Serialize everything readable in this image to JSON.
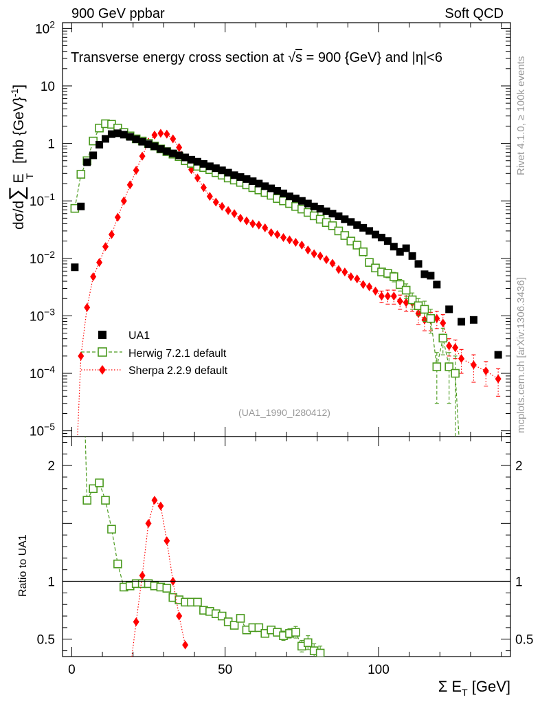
{
  "header": {
    "left": "900 GeV ppbar",
    "right": "Soft QCD"
  },
  "side": {
    "rivet": "Rivet 4.1.0, ≥ 100k events",
    "mcplots": "mcplots.cern.ch [arXiv:1306.3436]"
  },
  "chart_data": {
    "type": "scatter",
    "title_parts": {
      "pre": "Transverse energy cross section at ",
      "sqrt": "√",
      "s": "s",
      "mid": " = 900 {GeV} and |",
      "eta": "η",
      "post": "|<6"
    },
    "analysis_tag": "(UA1_1990_I280412)",
    "ylabel_parts": {
      "a": "dσ/d",
      "sum": "∑",
      "e": "E",
      "t": "T",
      "unit": "[mb {GeV}",
      "exp": "-1",
      "close": "]"
    },
    "xlabel_parts": {
      "sigma": "Σ E",
      "t": "T",
      "unit": " [GeV]"
    },
    "ratio_ylabel": "Ratio to UA1",
    "xlim": [
      -3,
      143
    ],
    "ylim_log": [
      -5.1,
      2.1
    ],
    "ratio_ylim": [
      0.35,
      2.25
    ],
    "main_y_ticks": [
      {
        "v": 2,
        "label": "10",
        "exp": "2"
      },
      {
        "v": 1,
        "label": "10",
        "exp": ""
      },
      {
        "v": 0,
        "label": "1",
        "exp": ""
      },
      {
        "v": -1,
        "label": "10",
        "exp": "−1"
      },
      {
        "v": -2,
        "label": "10",
        "exp": "−2"
      },
      {
        "v": -3,
        "label": "10",
        "exp": "−3"
      },
      {
        "v": -4,
        "label": "10",
        "exp": "−4"
      },
      {
        "v": -5,
        "label": "10",
        "exp": "−5"
      }
    ],
    "x_ticks": [
      0,
      50,
      100
    ],
    "ratio_ticks": [
      {
        "v": 2,
        "label": "2"
      },
      {
        "v": 1,
        "label": "1"
      },
      {
        "v": 0.5,
        "label": "0.5"
      }
    ],
    "series": [
      {
        "name": "UA1",
        "legend": "UA1",
        "color": "#000000",
        "marker": "square-filled",
        "line": "none",
        "x": [
          1,
          3,
          5,
          7,
          9,
          11,
          13,
          15,
          17,
          19,
          21,
          23,
          25,
          27,
          29,
          31,
          33,
          35,
          37,
          39,
          41,
          43,
          45,
          47,
          49,
          51,
          53,
          55,
          57,
          59,
          61,
          63,
          65,
          67,
          69,
          71,
          73,
          75,
          77,
          79,
          81,
          83,
          85,
          87,
          89,
          91,
          93,
          95,
          97,
          99,
          101,
          103,
          105,
          107,
          109,
          111,
          113,
          115,
          117,
          119,
          123,
          127,
          131,
          139
        ],
        "y": [
          0.007,
          0.08,
          0.47,
          0.62,
          0.95,
          1.2,
          1.45,
          1.5,
          1.42,
          1.3,
          1.18,
          1.07,
          0.97,
          0.89,
          0.8,
          0.73,
          0.67,
          0.62,
          0.57,
          0.52,
          0.48,
          0.44,
          0.4,
          0.37,
          0.34,
          0.31,
          0.28,
          0.26,
          0.24,
          0.22,
          0.2,
          0.18,
          0.165,
          0.15,
          0.135,
          0.12,
          0.11,
          0.1,
          0.09,
          0.08,
          0.073,
          0.066,
          0.06,
          0.054,
          0.048,
          0.043,
          0.038,
          0.034,
          0.03,
          0.026,
          0.023,
          0.02,
          0.016,
          0.013,
          0.015,
          0.011,
          0.008,
          0.0053,
          0.005,
          0.0035,
          0.0013,
          0.00079,
          0.00085,
          0.00021
        ]
      },
      {
        "name": "Herwig",
        "legend": "Herwig 7.2.1 default",
        "color": "#4a9a1e",
        "marker": "square-open",
        "line": "dashed",
        "x": [
          1,
          3,
          5,
          7,
          9,
          11,
          13,
          15,
          17,
          19,
          21,
          23,
          25,
          27,
          29,
          31,
          33,
          35,
          37,
          39,
          41,
          43,
          45,
          47,
          49,
          51,
          53,
          55,
          57,
          59,
          61,
          63,
          65,
          67,
          69,
          71,
          73,
          75,
          77,
          79,
          81,
          83,
          85,
          87,
          89,
          91,
          93,
          95,
          97,
          99,
          101,
          103,
          105,
          107,
          109,
          111,
          113,
          115,
          117,
          119,
          121,
          123,
          125,
          127
        ],
        "y": [
          0.074,
          0.29,
          0.5,
          1.1,
          1.85,
          2.2,
          2.15,
          1.85,
          1.55,
          1.35,
          1.2,
          1.1,
          1.0,
          0.9,
          0.8,
          0.72,
          0.65,
          0.59,
          0.5,
          0.45,
          0.4,
          0.38,
          0.35,
          0.31,
          0.28,
          0.25,
          0.23,
          0.21,
          0.19,
          0.17,
          0.155,
          0.14,
          0.125,
          0.11,
          0.1,
          0.09,
          0.08,
          0.072,
          0.063,
          0.055,
          0.048,
          0.042,
          0.037,
          0.03,
          0.025,
          0.02,
          0.017,
          0.013,
          0.0085,
          0.0068,
          0.0058,
          0.0055,
          0.0048,
          0.0035,
          0.0028,
          0.0019,
          0.0015,
          0.0013,
          0.0009,
          0.00013,
          0.00041,
          0.00013,
          0.0001,
          1.6e-06
        ],
        "yerr": [
          0,
          0,
          0,
          0,
          0,
          0,
          0,
          0,
          0,
          0,
          0,
          0,
          0,
          0,
          0,
          0,
          0,
          0,
          0,
          0,
          0,
          0,
          0,
          0,
          0,
          0,
          0,
          0,
          0,
          0,
          0,
          0,
          0,
          0,
          0,
          0,
          0,
          0,
          0,
          0,
          0,
          0,
          0,
          0,
          0,
          0,
          0,
          0,
          0,
          0,
          0.0008,
          0.0009,
          0.0009,
          0.0008,
          0.0008,
          0.0006,
          0.0005,
          0.0005,
          0.0004,
          0.0001,
          0.0002,
          0.0001,
          0.0001,
          0
        ]
      },
      {
        "name": "Sherpa",
        "legend": "Sherpa 2.2.9 default",
        "color": "#ff0000",
        "marker": "diamond-filled",
        "line": "dotted",
        "x": [
          1,
          3,
          5,
          7,
          9,
          11,
          13,
          15,
          17,
          19,
          21,
          23,
          25,
          27,
          29,
          31,
          33,
          35,
          37,
          39,
          41,
          43,
          45,
          47,
          49,
          51,
          53,
          55,
          57,
          59,
          61,
          63,
          65,
          67,
          69,
          71,
          73,
          75,
          77,
          79,
          81,
          83,
          85,
          87,
          89,
          91,
          93,
          95,
          97,
          99,
          101,
          103,
          105,
          107,
          109,
          111,
          113,
          115,
          117,
          119,
          121,
          123,
          125,
          127,
          131,
          135,
          139
        ],
        "y": [
          6e-07,
          0.0002,
          0.0014,
          0.0048,
          0.0085,
          0.016,
          0.026,
          0.052,
          0.1,
          0.19,
          0.34,
          0.6,
          1.05,
          1.4,
          1.5,
          1.45,
          1.2,
          0.85,
          0.55,
          0.35,
          0.25,
          0.17,
          0.12,
          0.095,
          0.08,
          0.068,
          0.06,
          0.05,
          0.045,
          0.04,
          0.038,
          0.034,
          0.028,
          0.026,
          0.023,
          0.021,
          0.019,
          0.017,
          0.014,
          0.012,
          0.011,
          0.0095,
          0.0082,
          0.0064,
          0.0058,
          0.0048,
          0.0044,
          0.0035,
          0.0032,
          0.0027,
          0.0022,
          0.0022,
          0.0022,
          0.0018,
          0.0017,
          0.0017,
          0.0011,
          0.00085,
          0.00085,
          0.0009,
          0.00075,
          0.0003,
          0.00028,
          0.00018,
          0.00014,
          0.00011,
          8e-05
        ],
        "yerr": [
          0,
          0,
          0,
          0,
          0,
          0,
          0,
          0,
          0,
          0,
          0,
          0,
          0,
          0,
          0,
          0,
          0,
          0,
          0,
          0,
          0,
          0,
          0,
          0,
          0,
          0,
          0,
          0,
          0,
          0,
          0,
          0,
          0,
          0,
          0,
          0,
          0,
          0,
          0,
          0,
          0,
          0,
          0,
          0,
          0,
          0,
          0,
          0,
          0,
          0,
          0.0005,
          0.0006,
          0.0006,
          0.0005,
          0.0005,
          0.0005,
          0.0004,
          0.0003,
          0.0003,
          0.0003,
          0.0003,
          0.0001,
          0.0001,
          8e-05,
          7e-05,
          5e-05,
          4e-05
        ]
      }
    ],
    "ratio_series": [
      {
        "name": "Herwig",
        "color": "#4a9a1e",
        "marker": "square-open",
        "line": "dashed",
        "x": [
          3,
          5,
          7,
          9,
          11,
          13,
          15,
          17,
          19,
          21,
          23,
          25,
          27,
          29,
          31,
          33,
          35,
          37,
          39,
          41,
          43,
          45,
          47,
          49,
          51,
          53,
          55,
          57,
          59,
          61,
          63,
          65,
          67,
          69,
          71,
          73,
          75,
          77,
          79,
          81
        ],
        "y": [
          3.6,
          1.7,
          1.8,
          1.85,
          1.7,
          1.45,
          1.15,
          0.95,
          0.96,
          0.98,
          0.98,
          0.98,
          0.96,
          0.95,
          0.94,
          0.86,
          0.84,
          0.82,
          0.82,
          0.82,
          0.75,
          0.74,
          0.72,
          0.7,
          0.65,
          0.62,
          0.68,
          0.58,
          0.6,
          0.6,
          0.55,
          0.58,
          0.56,
          0.53,
          0.55,
          0.56,
          0.44,
          0.47,
          0.4,
          0.38
        ],
        "yerr": [
          0,
          0,
          0,
          0,
          0,
          0,
          0,
          0,
          0,
          0,
          0,
          0,
          0,
          0,
          0,
          0,
          0,
          0,
          0,
          0,
          0,
          0,
          0,
          0,
          0,
          0,
          0.02,
          0.02,
          0.02,
          0.02,
          0.03,
          0.03,
          0.03,
          0.04,
          0.04,
          0.05,
          0.05,
          0.06,
          0.06,
          0.06
        ]
      },
      {
        "name": "Sherpa",
        "color": "#ff0000",
        "marker": "diamond-filled",
        "line": "dotted",
        "x": [
          17,
          19,
          21,
          23,
          25,
          27,
          29,
          31,
          33,
          35,
          37
        ],
        "y": [
          0.1,
          0.22,
          0.65,
          1.05,
          1.5,
          1.7,
          1.65,
          1.35,
          1.0,
          0.7,
          0.45
        ]
      }
    ]
  }
}
